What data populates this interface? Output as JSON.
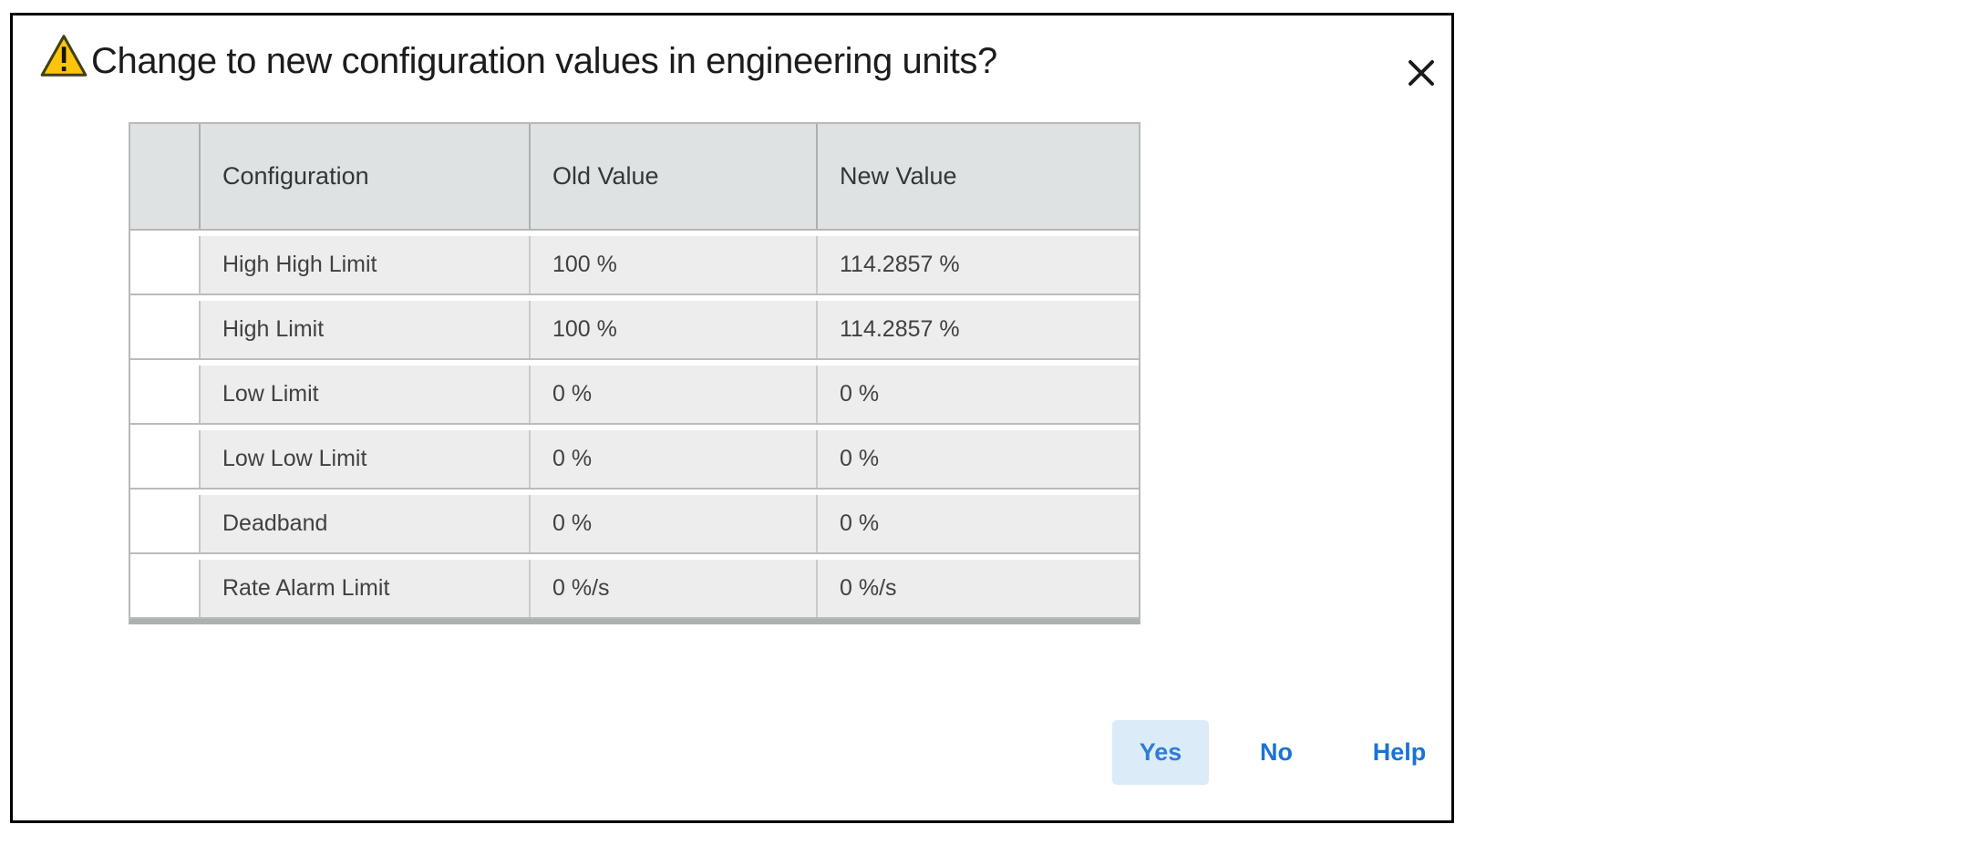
{
  "dialog": {
    "title": "Change to new configuration values in engineering units?",
    "table": {
      "headers": [
        "Configuration",
        "Old Value",
        "New Value"
      ],
      "rows": [
        {
          "configuration": "High High Limit",
          "old_value": "100 %",
          "new_value": "114.2857 %"
        },
        {
          "configuration": "High Limit",
          "old_value": "100 %",
          "new_value": "114.2857 %"
        },
        {
          "configuration": "Low Limit",
          "old_value": "0 %",
          "new_value": "0 %"
        },
        {
          "configuration": "Low Low Limit",
          "old_value": "0 %",
          "new_value": "0 %"
        },
        {
          "configuration": "Deadband",
          "old_value": "0 %",
          "new_value": "0 %"
        },
        {
          "configuration": "Rate Alarm Limit",
          "old_value": "0 %/s",
          "new_value": "0 %/s"
        }
      ]
    },
    "buttons": {
      "yes": "Yes",
      "no": "No",
      "help": "Help"
    },
    "colors": {
      "accent_blue": "#2478d4",
      "yes_button_bg": "#dcebf8",
      "warning_yellow": "#ffcc00",
      "header_bg": "#dfe2e3",
      "row_bg": "#ededed",
      "dialog_border": "#000000"
    }
  }
}
